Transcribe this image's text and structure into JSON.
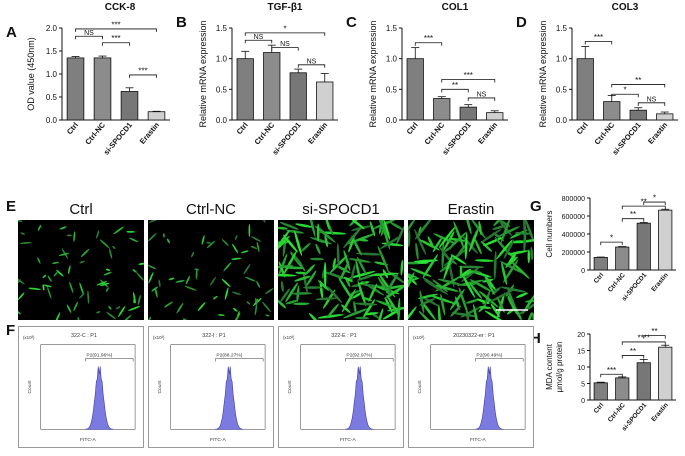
{
  "panel_letters": {
    "A": "A",
    "B": "B",
    "C": "C",
    "D": "D",
    "E": "E",
    "F": "F",
    "G": "G",
    "H": "H"
  },
  "photo_labels": [
    "Ctrl",
    "Ctrl-NC",
    "si-SPOCD1",
    "Erastin"
  ],
  "flow_panels": [
    {
      "title": "322-C : P1",
      "gate": "P2(91.96%)",
      "xlabel": "FITC-A",
      "ylabel": "Count",
      "exp": "(x10³)"
    },
    {
      "title": "322-I : P1",
      "gate": "P2(88.27%)",
      "xlabel": "FITC-A",
      "ylabel": "Count",
      "exp": "(x10³)"
    },
    {
      "title": "322-E : P1",
      "gate": "P2(92.97%)",
      "xlabel": "FITC-A",
      "ylabel": "Count",
      "exp": "(x10³)"
    },
    {
      "title": "20230322-er : P1",
      "gate": "P2(90.49%)",
      "xlabel": "FITC-A",
      "ylabel": "Count",
      "exp": "(x10³)"
    }
  ],
  "chart_data": [
    {
      "id": "A",
      "type": "bar",
      "title": "CCK-8",
      "ylabel": "OD value (450nm)",
      "categories": [
        "Ctrl",
        "Ctrl-NC",
        "si-SPOCD1",
        "Erastin"
      ],
      "values": [
        1.35,
        1.35,
        0.62,
        0.18
      ],
      "errors": [
        0.03,
        0.04,
        0.08,
        0.01
      ],
      "colors": [
        "#7f7f7f",
        "#8c8c8c",
        "#777777",
        "#d0d0d0"
      ],
      "ylim": [
        0,
        2.0
      ],
      "yticks": [
        "0.0",
        "0.5",
        "1.0",
        "1.5",
        "2.0"
      ],
      "ytick_values": [
        0,
        0.5,
        1.0,
        1.5,
        2.0
      ],
      "significance": [
        {
          "i": 0,
          "j": 1,
          "label": "NS",
          "y": 1.82
        },
        {
          "i": 1,
          "j": 2,
          "label": "***",
          "y": 1.68
        },
        {
          "i": 0,
          "j": 3,
          "label": "***",
          "y": 1.98
        },
        {
          "i": 2,
          "j": 3,
          "label": "***",
          "y": 0.98
        }
      ]
    },
    {
      "id": "B",
      "type": "bar",
      "title": "TGF-β1",
      "ylabel": "Relative mRNA expression",
      "categories": [
        "Ctrl",
        "Ctrl-NC",
        "si-SPOCD1",
        "Erastin"
      ],
      "values": [
        1.0,
        1.1,
        0.77,
        0.62
      ],
      "errors": [
        0.12,
        0.12,
        0.06,
        0.14
      ],
      "colors": [
        "#7f7f7f",
        "#8c8c8c",
        "#777777",
        "#d0d0d0"
      ],
      "ylim": [
        0,
        1.5
      ],
      "yticks": [
        "0.0",
        "0.5",
        "1.0",
        "1.5"
      ],
      "ytick_values": [
        0,
        0.5,
        1.0,
        1.5
      ],
      "significance": [
        {
          "i": 0,
          "j": 1,
          "label": "NS",
          "y": 1.3
        },
        {
          "i": 1,
          "j": 2,
          "label": "NS",
          "y": 1.18
        },
        {
          "i": 0,
          "j": 3,
          "label": "*",
          "y": 1.42
        },
        {
          "i": 2,
          "j": 3,
          "label": "NS",
          "y": 0.9
        }
      ]
    },
    {
      "id": "C",
      "type": "bar",
      "title": "COL1",
      "ylabel": "Relative mRNA expression",
      "categories": [
        "Ctrl",
        "Ctrl-NC",
        "si-SPOCD1",
        "Erastin"
      ],
      "values": [
        1.0,
        0.35,
        0.21,
        0.12
      ],
      "errors": [
        0.18,
        0.03,
        0.04,
        0.03
      ],
      "colors": [
        "#7f7f7f",
        "#8c8c8c",
        "#777777",
        "#d0d0d0"
      ],
      "ylim": [
        0,
        1.5
      ],
      "yticks": [
        "0.0",
        "0.5",
        "1.0",
        "1.5"
      ],
      "ytick_values": [
        0,
        0.5,
        1.0,
        1.5
      ],
      "significance": [
        {
          "i": 0,
          "j": 1,
          "label": "***",
          "y": 1.26
        },
        {
          "i": 1,
          "j": 3,
          "label": "***",
          "y": 0.66
        },
        {
          "i": 1,
          "j": 2,
          "label": "**",
          "y": 0.5
        },
        {
          "i": 2,
          "j": 3,
          "label": "NS",
          "y": 0.36
        }
      ]
    },
    {
      "id": "D",
      "type": "bar",
      "title": "COL3",
      "ylabel": "Relative mRNA expression",
      "categories": [
        "Ctrl",
        "Ctrl-NC",
        "si-SPOCD1",
        "Erastin"
      ],
      "values": [
        1.0,
        0.3,
        0.16,
        0.1
      ],
      "errors": [
        0.2,
        0.1,
        0.04,
        0.03
      ],
      "colors": [
        "#7f7f7f",
        "#8c8c8c",
        "#777777",
        "#d0d0d0"
      ],
      "ylim": [
        0,
        1.5
      ],
      "yticks": [
        "0.0",
        "0.5",
        "1.0",
        "1.5"
      ],
      "ytick_values": [
        0,
        0.5,
        1.0,
        1.5
      ],
      "significance": [
        {
          "i": 0,
          "j": 1,
          "label": "***",
          "y": 1.28
        },
        {
          "i": 1,
          "j": 3,
          "label": "**",
          "y": 0.58
        },
        {
          "i": 1,
          "j": 2,
          "label": "*",
          "y": 0.42
        },
        {
          "i": 2,
          "j": 3,
          "label": "NS",
          "y": 0.28
        }
      ]
    },
    {
      "id": "G",
      "type": "bar",
      "title": "",
      "ylabel": "Cell numbers",
      "categories": [
        "Ctrl",
        "Ctrl-NC",
        "si-SPOCD1",
        "Erastin"
      ],
      "values": [
        140000,
        255000,
        520000,
        665000
      ],
      "errors": [
        4000,
        6000,
        8000,
        10000
      ],
      "colors": [
        "#7f7f7f",
        "#8c8c8c",
        "#777777",
        "#d0d0d0"
      ],
      "ylim": [
        0,
        800000
      ],
      "yticks": [
        "0",
        "200000",
        "400000",
        "600000",
        "800000"
      ],
      "ytick_values": [
        0,
        200000,
        400000,
        600000,
        800000
      ],
      "significance": [
        {
          "i": 0,
          "j": 1,
          "label": "*",
          "y": 310000
        },
        {
          "i": 1,
          "j": 2,
          "label": "**",
          "y": 570000
        },
        {
          "i": 1,
          "j": 3,
          "label": "**",
          "y": 710000
        },
        {
          "i": 2,
          "j": 3,
          "label": "*",
          "y": 755000
        }
      ]
    },
    {
      "id": "H",
      "type": "bar",
      "title": "",
      "ylabel": "MDA content\nμmol/g protein",
      "categories": [
        "Ctrl",
        "Ctrl-NC",
        "si-SPOCD1",
        "Erastin"
      ],
      "values": [
        5.2,
        6.7,
        11.3,
        16.0
      ],
      "errors": [
        0.2,
        0.3,
        1.0,
        0.6
      ],
      "colors": [
        "#7f7f7f",
        "#8c8c8c",
        "#777777",
        "#d0d0d0"
      ],
      "ylim": [
        0,
        20
      ],
      "yticks": [
        "0",
        "5",
        "10",
        "15",
        "20"
      ],
      "ytick_values": [
        0,
        5,
        10,
        15,
        20
      ],
      "significance": [
        {
          "i": 0,
          "j": 1,
          "label": "***",
          "y": 7.8
        },
        {
          "i": 1,
          "j": 2,
          "label": "**",
          "y": 13.5
        },
        {
          "i": 1,
          "j": 3,
          "label": "****",
          "y": 17.6
        },
        {
          "i": 2,
          "j": 3,
          "label": "**",
          "y": 19.5
        }
      ]
    }
  ]
}
